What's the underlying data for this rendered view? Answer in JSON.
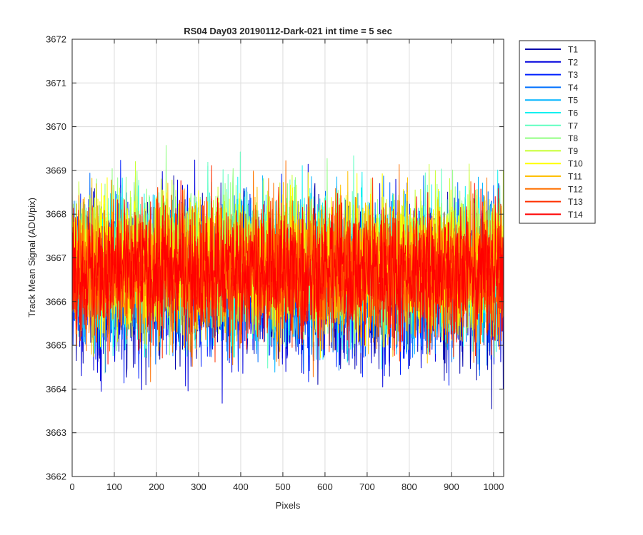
{
  "chart_data": {
    "type": "line",
    "title": "RS04 Day03 20190112-Dark-021 int time = 5 sec",
    "xlabel": "Pixels",
    "ylabel": "Track Mean Signal (ADU/pix)",
    "xlim": [
      0,
      1024
    ],
    "ylim": [
      3662,
      3672
    ],
    "xticks": [
      0,
      100,
      200,
      300,
      400,
      500,
      600,
      700,
      800,
      900,
      1000
    ],
    "yticks": [
      3662,
      3663,
      3664,
      3665,
      3666,
      3667,
      3668,
      3669,
      3670,
      3671,
      3672
    ],
    "grid": true,
    "legend_position": "outside-top-right",
    "x_sampling": "every integer pixel 0..1024",
    "series": [
      {
        "name": "T1",
        "color": "#0000aa",
        "mean": 3666.4,
        "std": 0.9
      },
      {
        "name": "T2",
        "color": "#0000dd",
        "mean": 3666.4,
        "std": 0.9
      },
      {
        "name": "T3",
        "color": "#0020ff",
        "mean": 3666.5,
        "std": 0.85
      },
      {
        "name": "T4",
        "color": "#0070ff",
        "mean": 3666.6,
        "std": 0.85
      },
      {
        "name": "T5",
        "color": "#00b4ff",
        "mean": 3666.7,
        "std": 0.85
      },
      {
        "name": "T6",
        "color": "#10f0f0",
        "mean": 3666.8,
        "std": 0.85
      },
      {
        "name": "T7",
        "color": "#60ffc0",
        "mean": 3666.9,
        "std": 0.8
      },
      {
        "name": "T8",
        "color": "#90ff80",
        "mean": 3667.0,
        "std": 0.8
      },
      {
        "name": "T9",
        "color": "#c8ff30",
        "mean": 3667.0,
        "std": 0.8
      },
      {
        "name": "T10",
        "color": "#ffff00",
        "mean": 3666.9,
        "std": 0.8
      },
      {
        "name": "T11",
        "color": "#ffc000",
        "mean": 3666.8,
        "std": 0.8
      },
      {
        "name": "T12",
        "color": "#ff7000",
        "mean": 3666.7,
        "std": 0.8
      },
      {
        "name": "T13",
        "color": "#ff3000",
        "mean": 3666.7,
        "std": 0.75
      },
      {
        "name": "T14",
        "color": "#ff0000",
        "mean": 3666.7,
        "std": 0.75
      }
    ]
  }
}
